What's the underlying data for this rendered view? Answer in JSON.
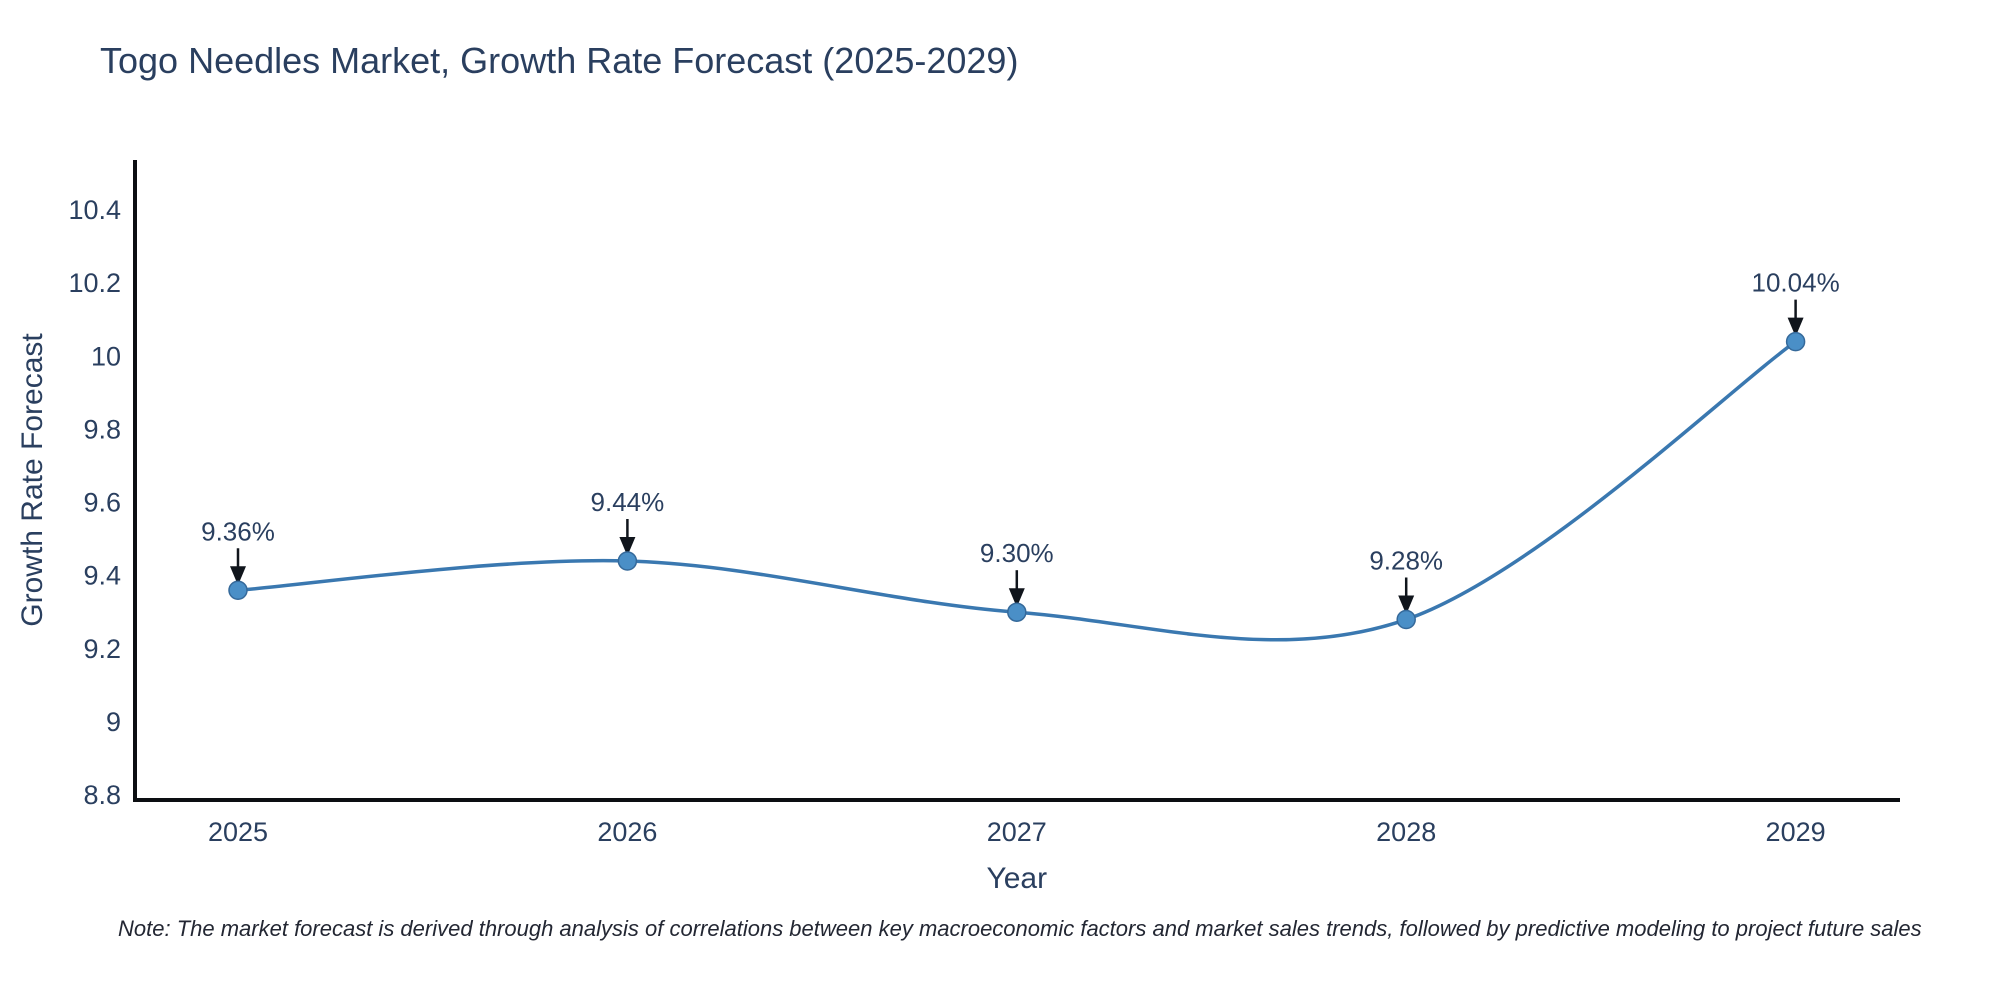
{
  "title": "Togo Needles Market, Growth Rate Forecast (2025-2029)",
  "note": "Note: The market forecast is derived through analysis of correlations between key macroeconomic factors and market sales trends, followed by predictive modeling to project future sales",
  "chart_data": {
    "type": "line",
    "title": "Togo Needles Market, Growth Rate Forecast (2025-2029)",
    "xlabel": "Year",
    "ylabel": "Growth Rate Forecast",
    "categories": [
      "2025",
      "2026",
      "2027",
      "2028",
      "2029"
    ],
    "values": [
      9.36,
      9.44,
      9.3,
      9.28,
      10.04
    ],
    "point_labels": [
      "9.36%",
      "9.44%",
      "9.30%",
      "9.28%",
      "10.04%"
    ],
    "line_shape": "spline",
    "markers": true,
    "grid": false,
    "legend": "none",
    "ylim": [
      8.78,
      10.55
    ],
    "ytick_labels": [
      "8.8",
      "9",
      "9.2",
      "9.4",
      "9.6",
      "9.8",
      "10",
      "10.2",
      "10.4"
    ],
    "colors": {
      "line": "#3a78b0",
      "marker_fill": "#4a8fc7",
      "marker_edge": "#35699a",
      "axis_line": "#0c0e12",
      "text": "#2a3f5f",
      "arrow": "#10151c",
      "background": "#ffffff"
    }
  }
}
